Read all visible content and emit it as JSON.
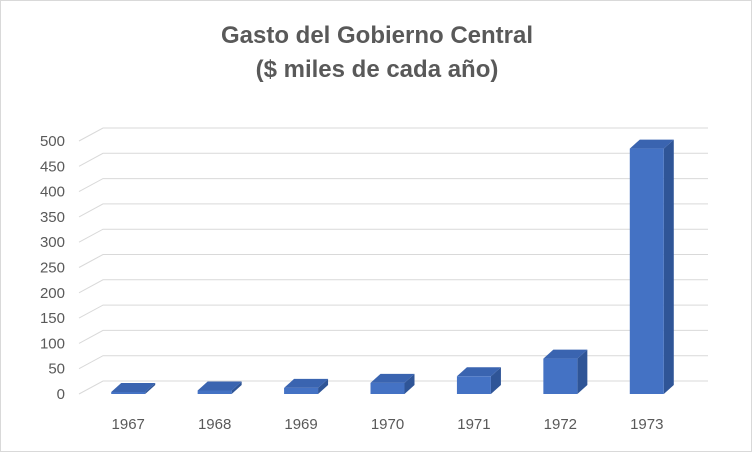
{
  "chart_data": {
    "type": "bar",
    "title_line1": "Gasto del Gobierno Central",
    "title_line2": "($ miles de cada año)",
    "categories": [
      "1967",
      "1968",
      "1969",
      "1970",
      "1971",
      "1972",
      "1973"
    ],
    "values": [
      4,
      7,
      12,
      22,
      35,
      70,
      485
    ],
    "ylim": [
      0,
      500
    ],
    "yticks": [
      0,
      50,
      100,
      150,
      200,
      250,
      300,
      350,
      400,
      450,
      500
    ],
    "grid": true,
    "legend": "none",
    "colors": {
      "bar_front": "#4472c4",
      "bar_top": "#3a64b0",
      "bar_side": "#2f5597",
      "grid": "#d9d9d9",
      "text": "#595959"
    }
  }
}
